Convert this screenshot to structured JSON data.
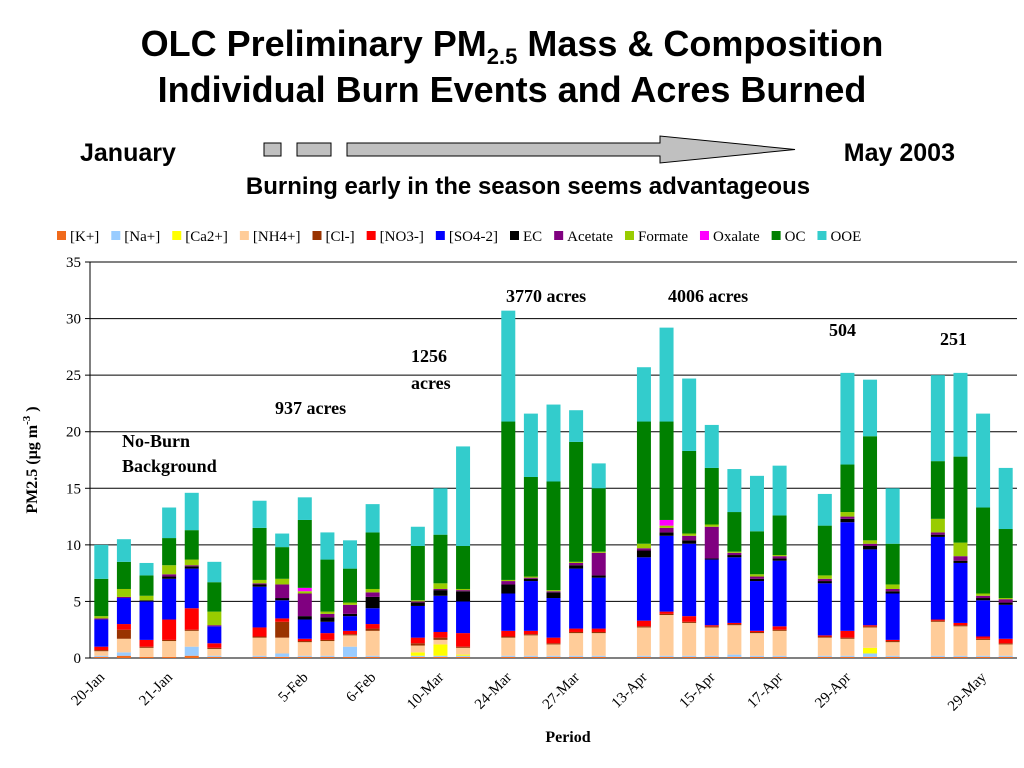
{
  "chart_data": {
    "type": "stacked_bar",
    "title": {
      "line1": [
        "OLC Preliminary PM",
        "2.5",
        " Mass & Composition"
      ],
      "line2": "Individual Burn Events and Acres Burned"
    },
    "timeline": {
      "start": "January",
      "end": "May 2003"
    },
    "subtitle": "Burning early in the season seems advantageous",
    "xlabel": "Period",
    "ylabel": [
      "PM2.5 (µg m",
      "-3",
      " )"
    ],
    "annotations": [
      {
        "text": [
          "No-Burn",
          "Background"
        ]
      },
      {
        "text": [
          "937 acres"
        ]
      },
      {
        "text": [
          "1256",
          "acres"
        ]
      },
      {
        "text": [
          "3770 acres"
        ]
      },
      {
        "text": [
          "4006 acres"
        ]
      },
      {
        "text": [
          "504"
        ]
      },
      {
        "text": [
          "251"
        ]
      }
    ],
    "ylim": [
      0,
      35
    ],
    "yticks": [
      0,
      5,
      10,
      15,
      20,
      25,
      30,
      35
    ],
    "grid": true,
    "legend": "top",
    "categories": [
      "20-Jan",
      null,
      null,
      "21-Jan",
      null,
      null,
      null,
      null,
      null,
      "5-Feb",
      null,
      null,
      "6-Feb",
      null,
      null,
      "10-Mar",
      null,
      null,
      "24-Mar",
      null,
      null,
      "27-Mar",
      null,
      null,
      "13-Apr",
      null,
      null,
      "15-Apr",
      null,
      null,
      "17-Apr",
      null,
      null,
      "29-Apr",
      null,
      null,
      null,
      null,
      null,
      "29-May",
      null
    ],
    "series": [
      {
        "name": "[K+]",
        "color": "#f06a1c",
        "values": [
          0.1,
          0.2,
          0.1,
          0.1,
          0.2,
          0.1,
          null,
          0.1,
          0.1,
          0.1,
          0.1,
          0.1,
          0.1,
          null,
          0.1,
          0.1,
          0.1,
          null,
          0.1,
          0.1,
          0.1,
          0.1,
          0.1,
          null,
          0.1,
          0.1,
          0.1,
          0.1,
          0.1,
          0.1,
          0.1,
          null,
          0.1,
          0.1,
          0.1,
          0.1,
          null,
          0.1,
          0.1,
          0.1,
          0.1
        ]
      },
      {
        "name": "[Na+]",
        "color": "#99ccff",
        "values": [
          0.1,
          0.3,
          0,
          0,
          0.8,
          0.1,
          null,
          0.1,
          0.3,
          0.1,
          0.1,
          0.9,
          0.1,
          null,
          0.1,
          0.1,
          0.1,
          null,
          0.1,
          0.1,
          0.1,
          0.1,
          0.1,
          null,
          0.1,
          0.1,
          0.1,
          0.1,
          0.2,
          0.1,
          0.1,
          null,
          0.1,
          0.1,
          0.3,
          0.1,
          null,
          0.1,
          0.1,
          0.1,
          0.1
        ]
      },
      {
        "name": "[Ca2+]",
        "color": "#ffff00",
        "values": [
          0,
          0,
          0,
          0,
          0,
          0,
          null,
          0,
          0,
          0,
          0,
          0,
          0,
          null,
          0.3,
          1.0,
          0.1,
          null,
          0,
          0,
          0,
          0,
          0,
          null,
          0,
          0,
          0,
          0,
          0,
          0,
          0,
          null,
          0,
          0,
          0.5,
          0,
          null,
          0,
          0,
          0,
          0
        ]
      },
      {
        "name": "[NH4+]",
        "color": "#ffcc99",
        "values": [
          0.4,
          1.2,
          0.8,
          1.4,
          1.4,
          0.6,
          null,
          1.6,
          1.4,
          1.2,
          1.3,
          1.0,
          2.2,
          null,
          0.6,
          0.4,
          0.6,
          null,
          1.6,
          1.8,
          1.0,
          2.0,
          2.0,
          null,
          2.5,
          3.6,
          2.9,
          2.5,
          2.6,
          2.0,
          2.2,
          null,
          1.6,
          1.5,
          1.8,
          1.2,
          null,
          3.0,
          2.6,
          1.4,
          1.0
        ]
      },
      {
        "name": "[Cl-]",
        "color": "#993300",
        "values": [
          0.1,
          0.8,
          0.1,
          0.1,
          0.1,
          0.1,
          null,
          0.1,
          1.4,
          0.1,
          0.1,
          0.1,
          0.2,
          null,
          0.2,
          0.2,
          0.1,
          null,
          0.1,
          0.1,
          0.1,
          0.1,
          0.1,
          null,
          0.1,
          0.1,
          0.1,
          0.1,
          0.1,
          0.1,
          0.1,
          null,
          0.1,
          0.1,
          0.1,
          0.1,
          null,
          0.1,
          0.1,
          0.1,
          0.1
        ]
      },
      {
        "name": "[NO3-]",
        "color": "#ff0000",
        "values": [
          0.3,
          0.5,
          0.6,
          1.8,
          1.9,
          0.4,
          null,
          0.8,
          0.3,
          0.2,
          0.6,
          0.3,
          0.4,
          null,
          0.5,
          0.5,
          1.2,
          null,
          0.5,
          0.3,
          0.5,
          0.3,
          0.3,
          null,
          0.5,
          0.2,
          0.5,
          0.1,
          0.1,
          0.1,
          0.3,
          null,
          0.1,
          0.6,
          0.1,
          0.1,
          null,
          0.1,
          0.2,
          0.2,
          0.4
        ]
      },
      {
        "name": "[SO4-2]",
        "color": "#0000ff",
        "values": [
          2.4,
          2.3,
          3.4,
          3.6,
          3.5,
          1.5,
          null,
          3.6,
          1.6,
          1.7,
          1.0,
          1.3,
          1.4,
          null,
          2.8,
          3.2,
          2.8,
          null,
          3.3,
          4.4,
          3.5,
          5.3,
          4.5,
          null,
          5.6,
          6.7,
          6.4,
          5.8,
          5.8,
          4.4,
          5.8,
          null,
          4.6,
          9.6,
          6.7,
          4.1,
          null,
          7.3,
          5.3,
          3.2,
          3.0
        ]
      },
      {
        "name": "EC",
        "color": "#000000",
        "values": [
          0,
          0,
          0.1,
          0.2,
          0.2,
          0,
          null,
          0.2,
          0.2,
          0.3,
          0.4,
          0.2,
          1.0,
          null,
          0.3,
          0.5,
          0.9,
          null,
          0.8,
          0.2,
          0.5,
          0.3,
          0.2,
          null,
          0.6,
          0.3,
          0.3,
          0.1,
          0.2,
          0.2,
          0.2,
          null,
          0.2,
          0.3,
          0.3,
          0.2,
          null,
          0.2,
          0.2,
          0.2,
          0.2
        ]
      },
      {
        "name": "Acetate",
        "color": "#800080",
        "values": [
          0.1,
          0.1,
          0,
          0.2,
          0.1,
          0.1,
          null,
          0.1,
          1.2,
          2.0,
          0.3,
          0.8,
          0.4,
          null,
          0.1,
          0.1,
          0.1,
          null,
          0.3,
          0.1,
          0.1,
          0.2,
          2.0,
          null,
          0.2,
          0.4,
          0.4,
          2.8,
          0.2,
          0.2,
          0.2,
          null,
          0.2,
          0.2,
          0.2,
          0.2,
          null,
          0.2,
          0.4,
          0.2,
          0.3
        ]
      },
      {
        "name": "Formate",
        "color": "#99cc00",
        "values": [
          0.2,
          0.7,
          0.4,
          0.8,
          0.5,
          1.2,
          null,
          0.3,
          0.5,
          0.2,
          0.2,
          0.2,
          0.3,
          null,
          0.1,
          0.5,
          0.1,
          null,
          0.1,
          0.1,
          0.1,
          0.1,
          0.1,
          null,
          0.4,
          0.2,
          0.2,
          0.2,
          0.1,
          0.2,
          0.1,
          null,
          0.3,
          0.4,
          0.3,
          0.4,
          null,
          1.2,
          1.2,
          0.2,
          0.1
        ]
      },
      {
        "name": "Oxalate",
        "color": "#ff00ff",
        "values": [
          0,
          0,
          0,
          0,
          0,
          0,
          null,
          0,
          0,
          0.3,
          0,
          0,
          0,
          null,
          0,
          0,
          0,
          null,
          0,
          0,
          0,
          0,
          0,
          null,
          0,
          0.5,
          0,
          0,
          0,
          0,
          0,
          null,
          0,
          0,
          0,
          0,
          null,
          0,
          0,
          0,
          0
        ]
      },
      {
        "name": "OC",
        "color": "#008000",
        "values": [
          3.3,
          2.4,
          1.8,
          2.4,
          2.6,
          2.6,
          null,
          4.6,
          2.8,
          6.0,
          4.6,
          3.0,
          5.0,
          null,
          4.8,
          4.3,
          3.8,
          null,
          14.0,
          8.8,
          9.6,
          10.6,
          5.6,
          null,
          10.8,
          8.7,
          7.3,
          5.0,
          3.5,
          3.8,
          3.5,
          null,
          4.4,
          4.2,
          9.2,
          3.6,
          null,
          5.1,
          7.6,
          7.6,
          6.1
        ]
      },
      {
        "name": "OOE",
        "color": "#33cccc",
        "values": [
          3.0,
          2.0,
          1.1,
          2.7,
          3.3,
          1.8,
          null,
          2.4,
          1.2,
          2.0,
          2.4,
          2.5,
          2.5,
          null,
          1.7,
          4.1,
          8.8,
          null,
          9.8,
          5.6,
          6.8,
          2.8,
          2.2,
          null,
          4.8,
          8.3,
          6.4,
          3.8,
          3.8,
          4.9,
          4.4,
          null,
          2.8,
          8.1,
          5.0,
          4.9,
          null,
          7.6,
          7.4,
          8.3,
          5.4
        ]
      }
    ]
  }
}
